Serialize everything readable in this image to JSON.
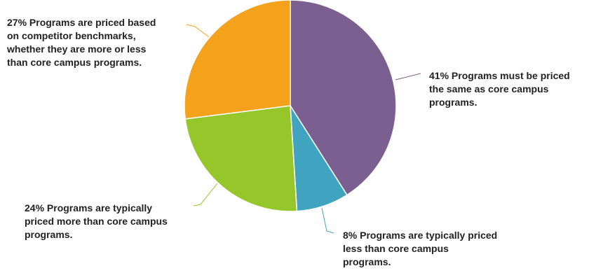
{
  "chart_data": {
    "type": "pie",
    "start_angle_deg": 0,
    "direction": "clockwise",
    "slices": [
      {
        "percent": 41,
        "label": "41% Programs must be priced the same as core campus programs.",
        "lines": [
          "41% Programs must be priced",
          "the same as core campus",
          "programs."
        ],
        "color": "#7b5f90"
      },
      {
        "percent": 8,
        "label": "8% Programs are typically priced less than core campus programs.",
        "lines": [
          "8% Programs are typically priced",
          "less than core campus",
          "programs."
        ],
        "color": "#40a3c0"
      },
      {
        "percent": 24,
        "label": "24% Programs are typically priced more than core campus programs.",
        "lines": [
          "24% Programs are typically",
          "priced more than core campus",
          "programs."
        ],
        "color": "#95c62a"
      },
      {
        "percent": 27,
        "label": "27% Programs are priced based on competitor benchmarks, whether they are more or less than core campus programs.",
        "lines": [
          "27% Programs are priced based",
          "on competitor benchmarks,",
          "whether they are more or less",
          "than core campus programs."
        ],
        "color": "#f4a21b"
      }
    ]
  }
}
